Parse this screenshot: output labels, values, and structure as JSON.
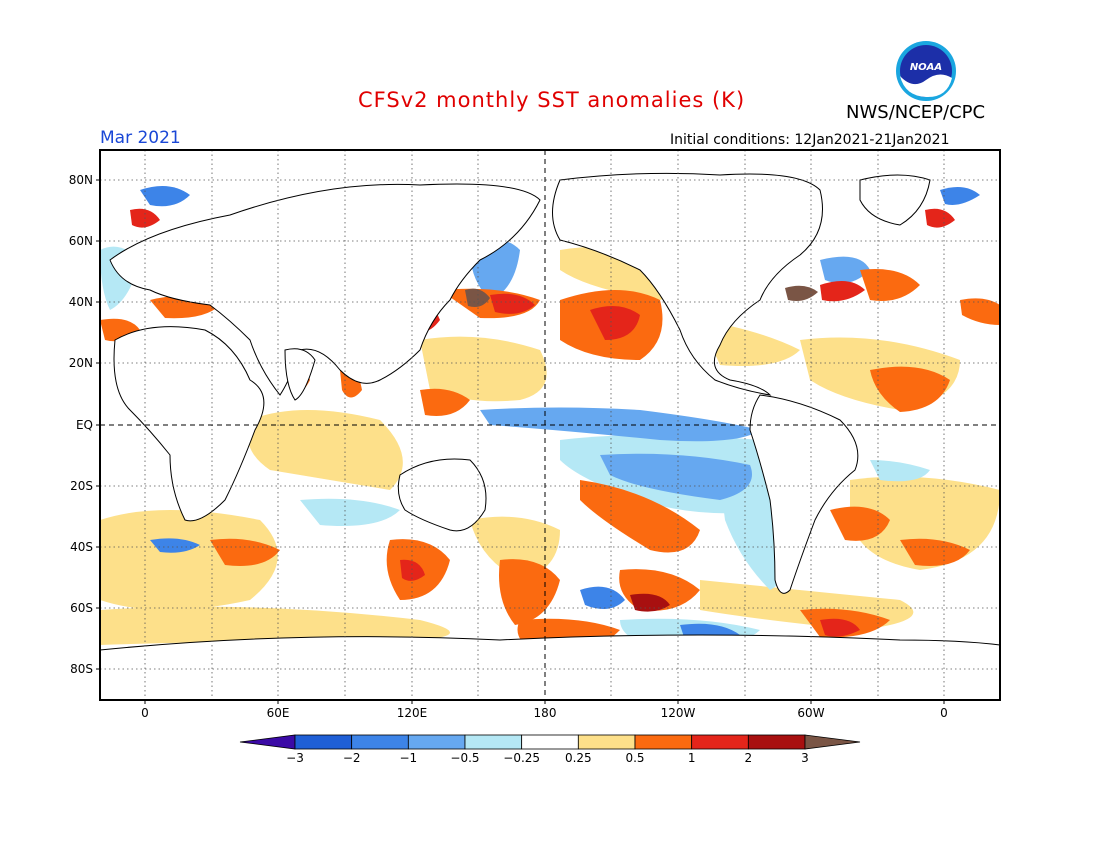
{
  "header": {
    "title": "CFSv2 monthly SST anomalies (K)",
    "agency": "NWS/NCEP/CPC",
    "logo_text": "NOAA",
    "month": "Mar 2021",
    "initial_conditions": "Initial conditions: 12Jan2021-21Jan2021"
  },
  "axes": {
    "lat_labels": [
      "80N",
      "60N",
      "40N",
      "20N",
      "EQ",
      "20S",
      "40S",
      "60S",
      "80S"
    ],
    "lon_labels": [
      "0",
      "60E",
      "120E",
      "180",
      "120W",
      "60W",
      "0"
    ]
  },
  "colorbar": {
    "tick_labels": [
      "-3",
      "-2",
      "-1",
      "-0.5",
      "-0.25",
      "0.25",
      "0.5",
      "1",
      "2",
      "3"
    ],
    "colors": [
      "#3b0aa6",
      "#1f5fd6",
      "#3d84e8",
      "#66a8f0",
      "#b5e8f5",
      "#ffffff",
      "#fde08a",
      "#fb6a10",
      "#e4251a",
      "#a81010",
      "#7a5545"
    ]
  }
}
